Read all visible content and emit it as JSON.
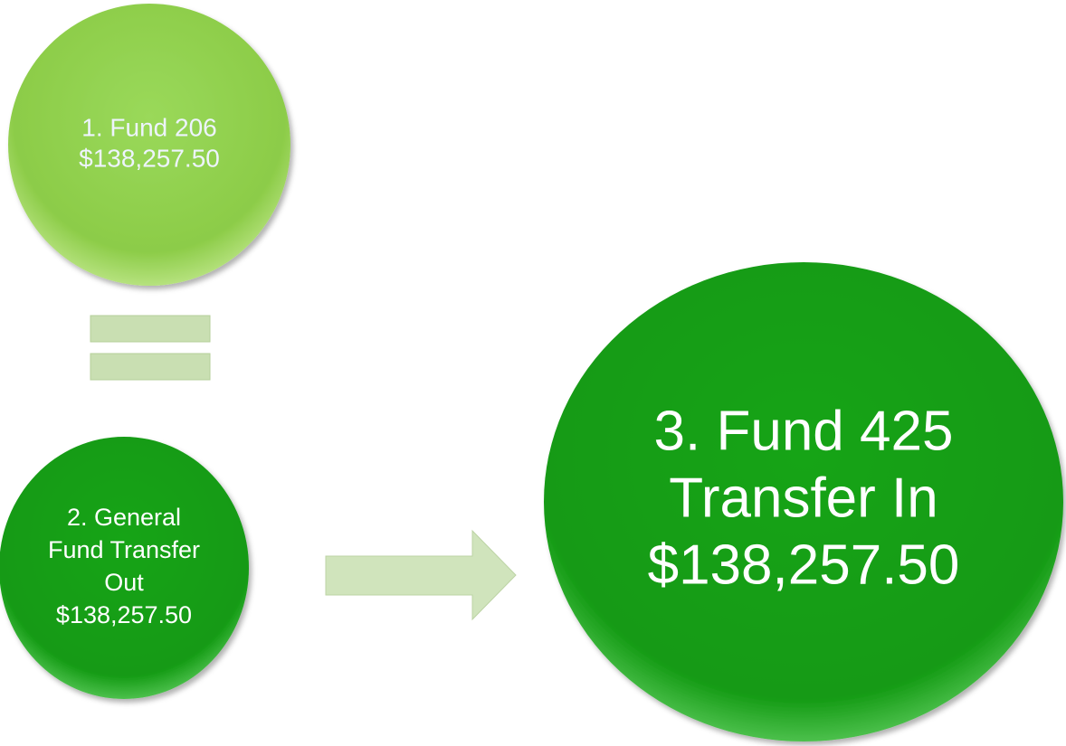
{
  "nodes": [
    {
      "lines": [
        "1. Fund 206",
        "$138,257.50"
      ]
    },
    {
      "lines": [
        "2. General",
        "Fund Transfer",
        "Out",
        "$138,257.50"
      ]
    },
    {
      "lines": [
        "3. Fund 425",
        "Transfer In",
        "$138,257.50"
      ]
    }
  ]
}
